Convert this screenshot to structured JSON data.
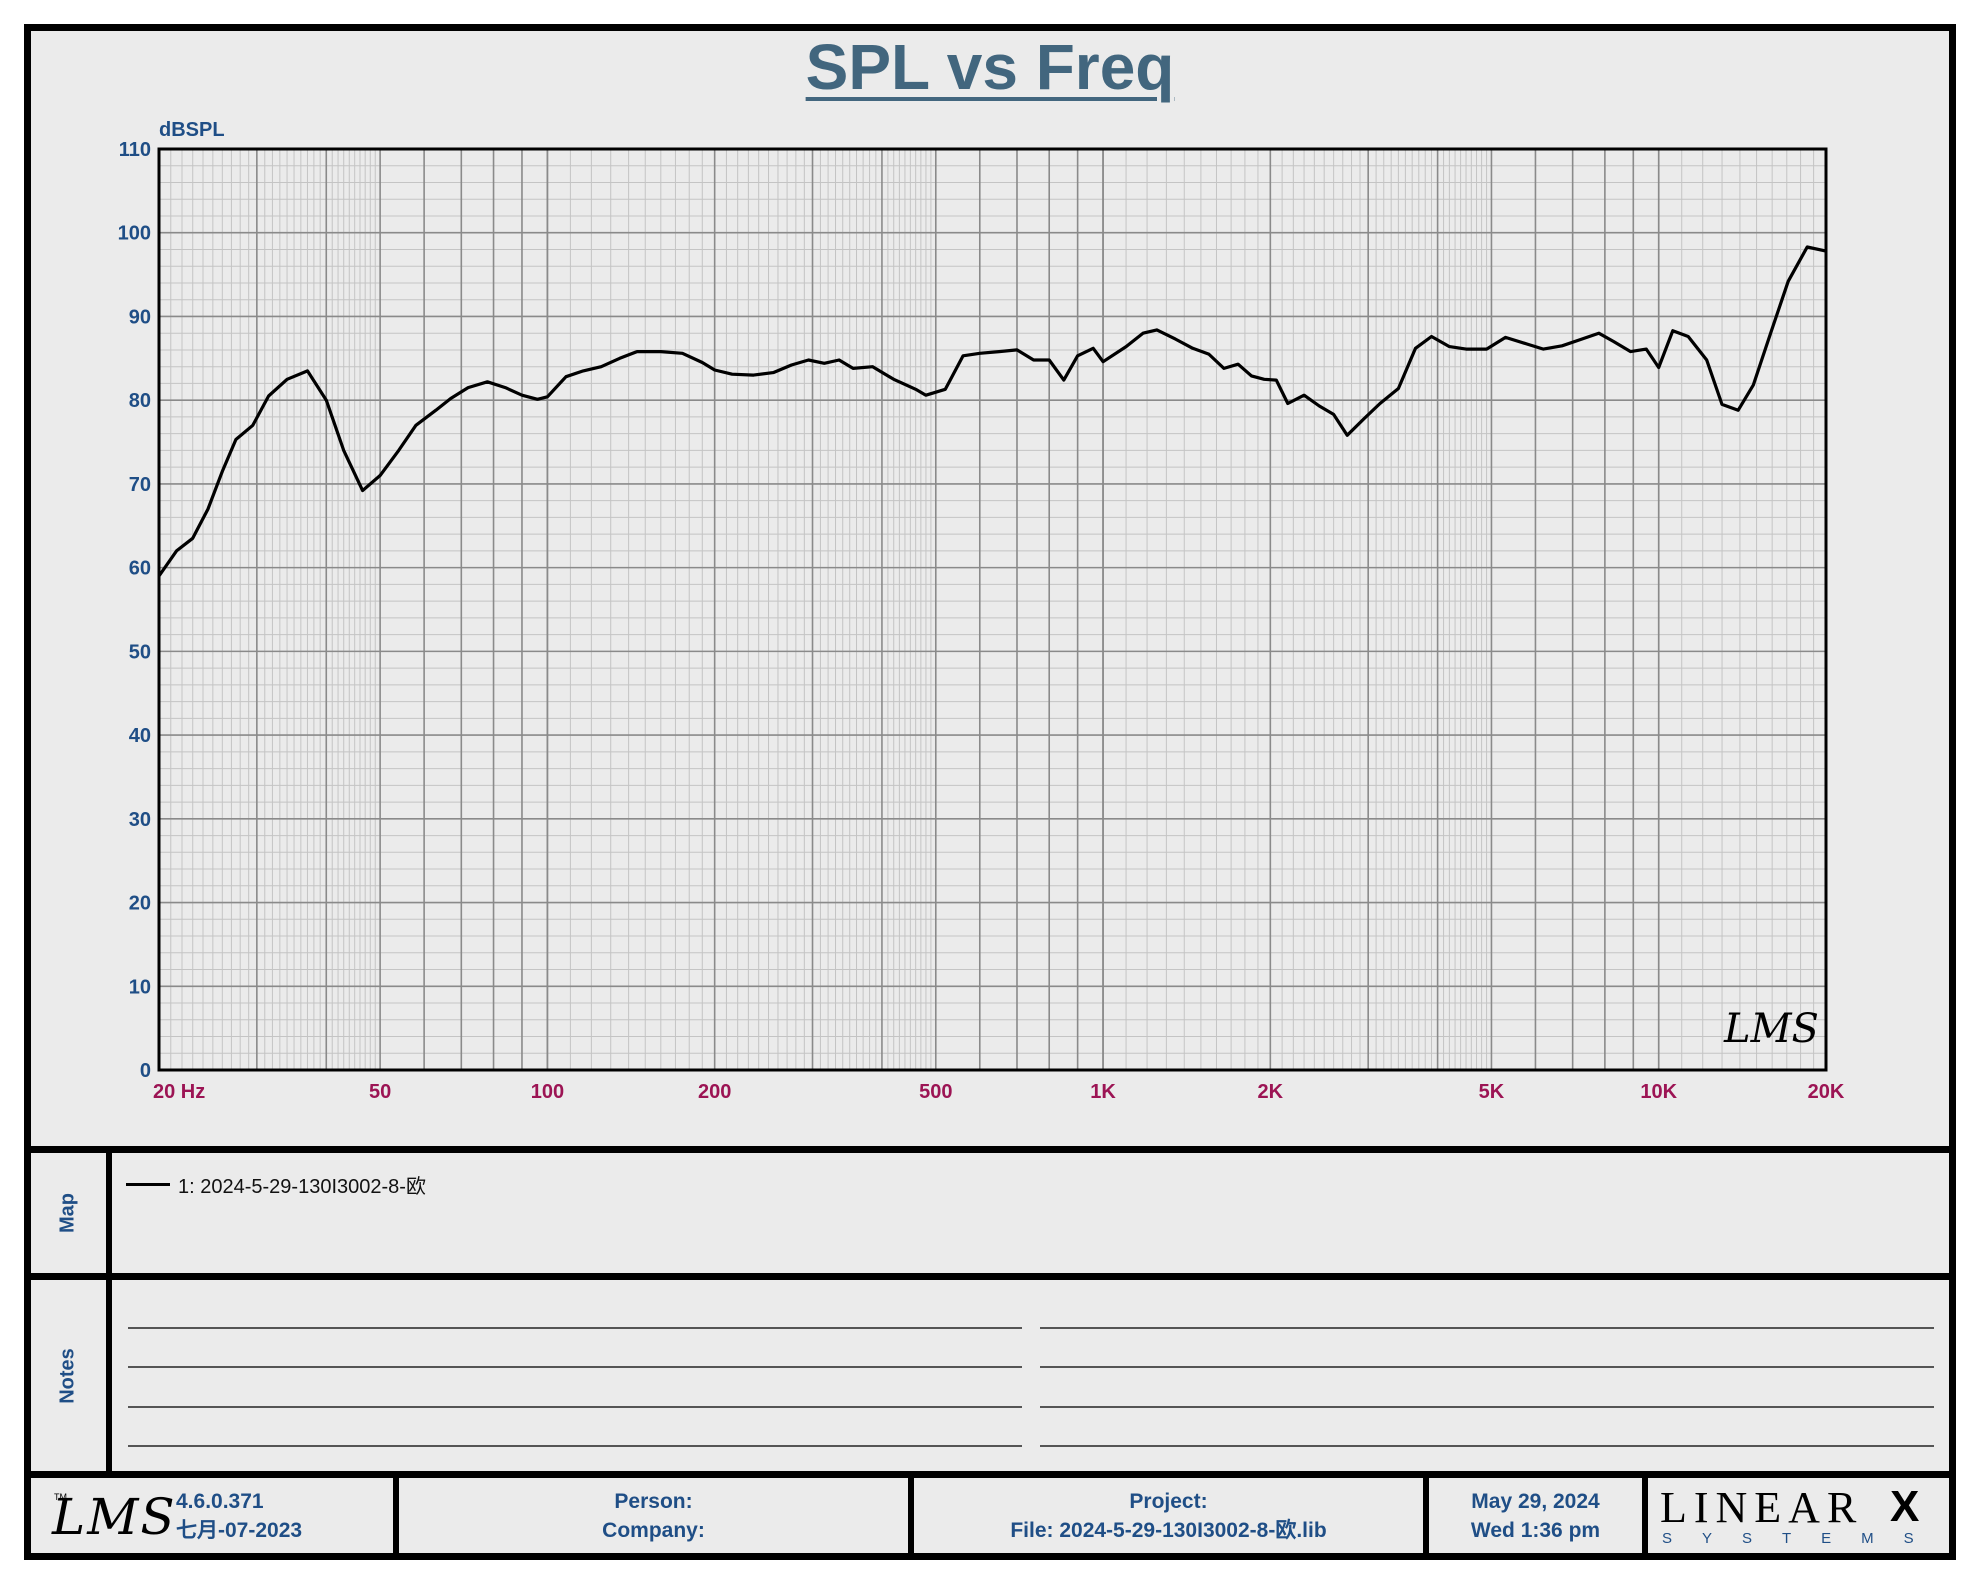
{
  "chart_data": {
    "type": "line",
    "title": "SPL vs Freq",
    "ylabel": "dBSPL",
    "xlabel": "Hz",
    "x_scale": "log",
    "xlim": [
      20,
      20000
    ],
    "ylim": [
      0,
      110
    ],
    "y_ticks": [
      0,
      10,
      20,
      30,
      40,
      50,
      60,
      70,
      80,
      90,
      100,
      110
    ],
    "x_tick_labels": [
      {
        "f": 20,
        "label": "20  Hz"
      },
      {
        "f": 50,
        "label": "50"
      },
      {
        "f": 100,
        "label": "100"
      },
      {
        "f": 200,
        "label": "200"
      },
      {
        "f": 500,
        "label": "500"
      },
      {
        "f": 1000,
        "label": "1K"
      },
      {
        "f": 2000,
        "label": "2K"
      },
      {
        "f": 5000,
        "label": "5K"
      },
      {
        "f": 10000,
        "label": "10K"
      },
      {
        "f": 20000,
        "label": "20K"
      }
    ],
    "grid": true,
    "series": [
      {
        "name": "1: 2024-5-29-130I3002-8-欧",
        "color": "#000000",
        "points": [
          [
            20,
            59
          ],
          [
            21.5,
            62
          ],
          [
            23,
            63.5
          ],
          [
            24.5,
            67
          ],
          [
            26,
            71.5
          ],
          [
            27.5,
            75.3
          ],
          [
            29.5,
            77
          ],
          [
            31.5,
            80.5
          ],
          [
            34,
            82.5
          ],
          [
            37,
            83.5
          ],
          [
            40,
            80
          ],
          [
            43,
            74
          ],
          [
            46.5,
            69.2
          ],
          [
            50,
            71
          ],
          [
            54,
            74
          ],
          [
            58,
            77
          ],
          [
            63,
            78.8
          ],
          [
            67,
            80.2
          ],
          [
            72,
            81.5
          ],
          [
            78,
            82.2
          ],
          [
            84,
            81.5
          ],
          [
            90,
            80.6
          ],
          [
            96,
            80.1
          ],
          [
            100,
            80.4
          ],
          [
            108,
            82.8
          ],
          [
            116,
            83.5
          ],
          [
            125,
            84
          ],
          [
            135,
            85
          ],
          [
            145,
            85.8
          ],
          [
            160,
            85.8
          ],
          [
            175,
            85.6
          ],
          [
            190,
            84.5
          ],
          [
            200,
            83.6
          ],
          [
            215,
            83.1
          ],
          [
            235,
            83
          ],
          [
            255,
            83.3
          ],
          [
            275,
            84.2
          ],
          [
            295,
            84.8
          ],
          [
            315,
            84.4
          ],
          [
            335,
            84.8
          ],
          [
            355,
            83.8
          ],
          [
            385,
            84
          ],
          [
            420,
            82.5
          ],
          [
            460,
            81.3
          ],
          [
            480,
            80.6
          ],
          [
            520,
            81.3
          ],
          [
            560,
            85.3
          ],
          [
            600,
            85.6
          ],
          [
            650,
            85.8
          ],
          [
            700,
            86
          ],
          [
            750,
            84.8
          ],
          [
            800,
            84.8
          ],
          [
            850,
            82.4
          ],
          [
            900,
            85.3
          ],
          [
            960,
            86.2
          ],
          [
            1000,
            84.6
          ],
          [
            1100,
            86.4
          ],
          [
            1180,
            88
          ],
          [
            1250,
            88.4
          ],
          [
            1350,
            87.3
          ],
          [
            1450,
            86.2
          ],
          [
            1550,
            85.5
          ],
          [
            1650,
            83.8
          ],
          [
            1750,
            84.3
          ],
          [
            1850,
            82.9
          ],
          [
            1950,
            82.5
          ],
          [
            2050,
            82.4
          ],
          [
            2150,
            79.6
          ],
          [
            2300,
            80.6
          ],
          [
            2450,
            79.3
          ],
          [
            2600,
            78.3
          ],
          [
            2750,
            75.8
          ],
          [
            2950,
            77.8
          ],
          [
            3150,
            79.6
          ],
          [
            3400,
            81.4
          ],
          [
            3650,
            86.2
          ],
          [
            3900,
            87.6
          ],
          [
            4200,
            86.4
          ],
          [
            4500,
            86.1
          ],
          [
            4900,
            86.1
          ],
          [
            5300,
            87.5
          ],
          [
            5800,
            86.7
          ],
          [
            6200,
            86.1
          ],
          [
            6700,
            86.5
          ],
          [
            7200,
            87.2
          ],
          [
            7800,
            88
          ],
          [
            8300,
            87
          ],
          [
            8900,
            85.8
          ],
          [
            9500,
            86.1
          ],
          [
            10000,
            83.9
          ],
          [
            10600,
            88.3
          ],
          [
            11300,
            87.6
          ],
          [
            12200,
            84.8
          ],
          [
            13000,
            79.5
          ],
          [
            13900,
            78.8
          ],
          [
            14800,
            81.8
          ],
          [
            15900,
            88
          ],
          [
            17100,
            94.2
          ],
          [
            18500,
            98.3
          ],
          [
            20000,
            97.8
          ]
        ]
      }
    ]
  },
  "map": {
    "label": "Map",
    "legend_entry": "1: 2024-5-29-130I3002-8-欧"
  },
  "notes": {
    "label": "Notes"
  },
  "footer": {
    "logo": "LMS",
    "tm": "TM",
    "version": "4.6.0.371",
    "build_date": "七月-07-2023",
    "person_label": "Person:",
    "company_label": "Company:",
    "project_label": "Project:",
    "file_label": "File: 2024-5-29-130I3002-8-欧.lib",
    "date": "May 29, 2024",
    "day_time": "Wed  1:36 pm",
    "brand": "LINEAR",
    "brand_mark": "X",
    "brand_sub": "SYSTEMS"
  },
  "chart_logo": "LMS"
}
